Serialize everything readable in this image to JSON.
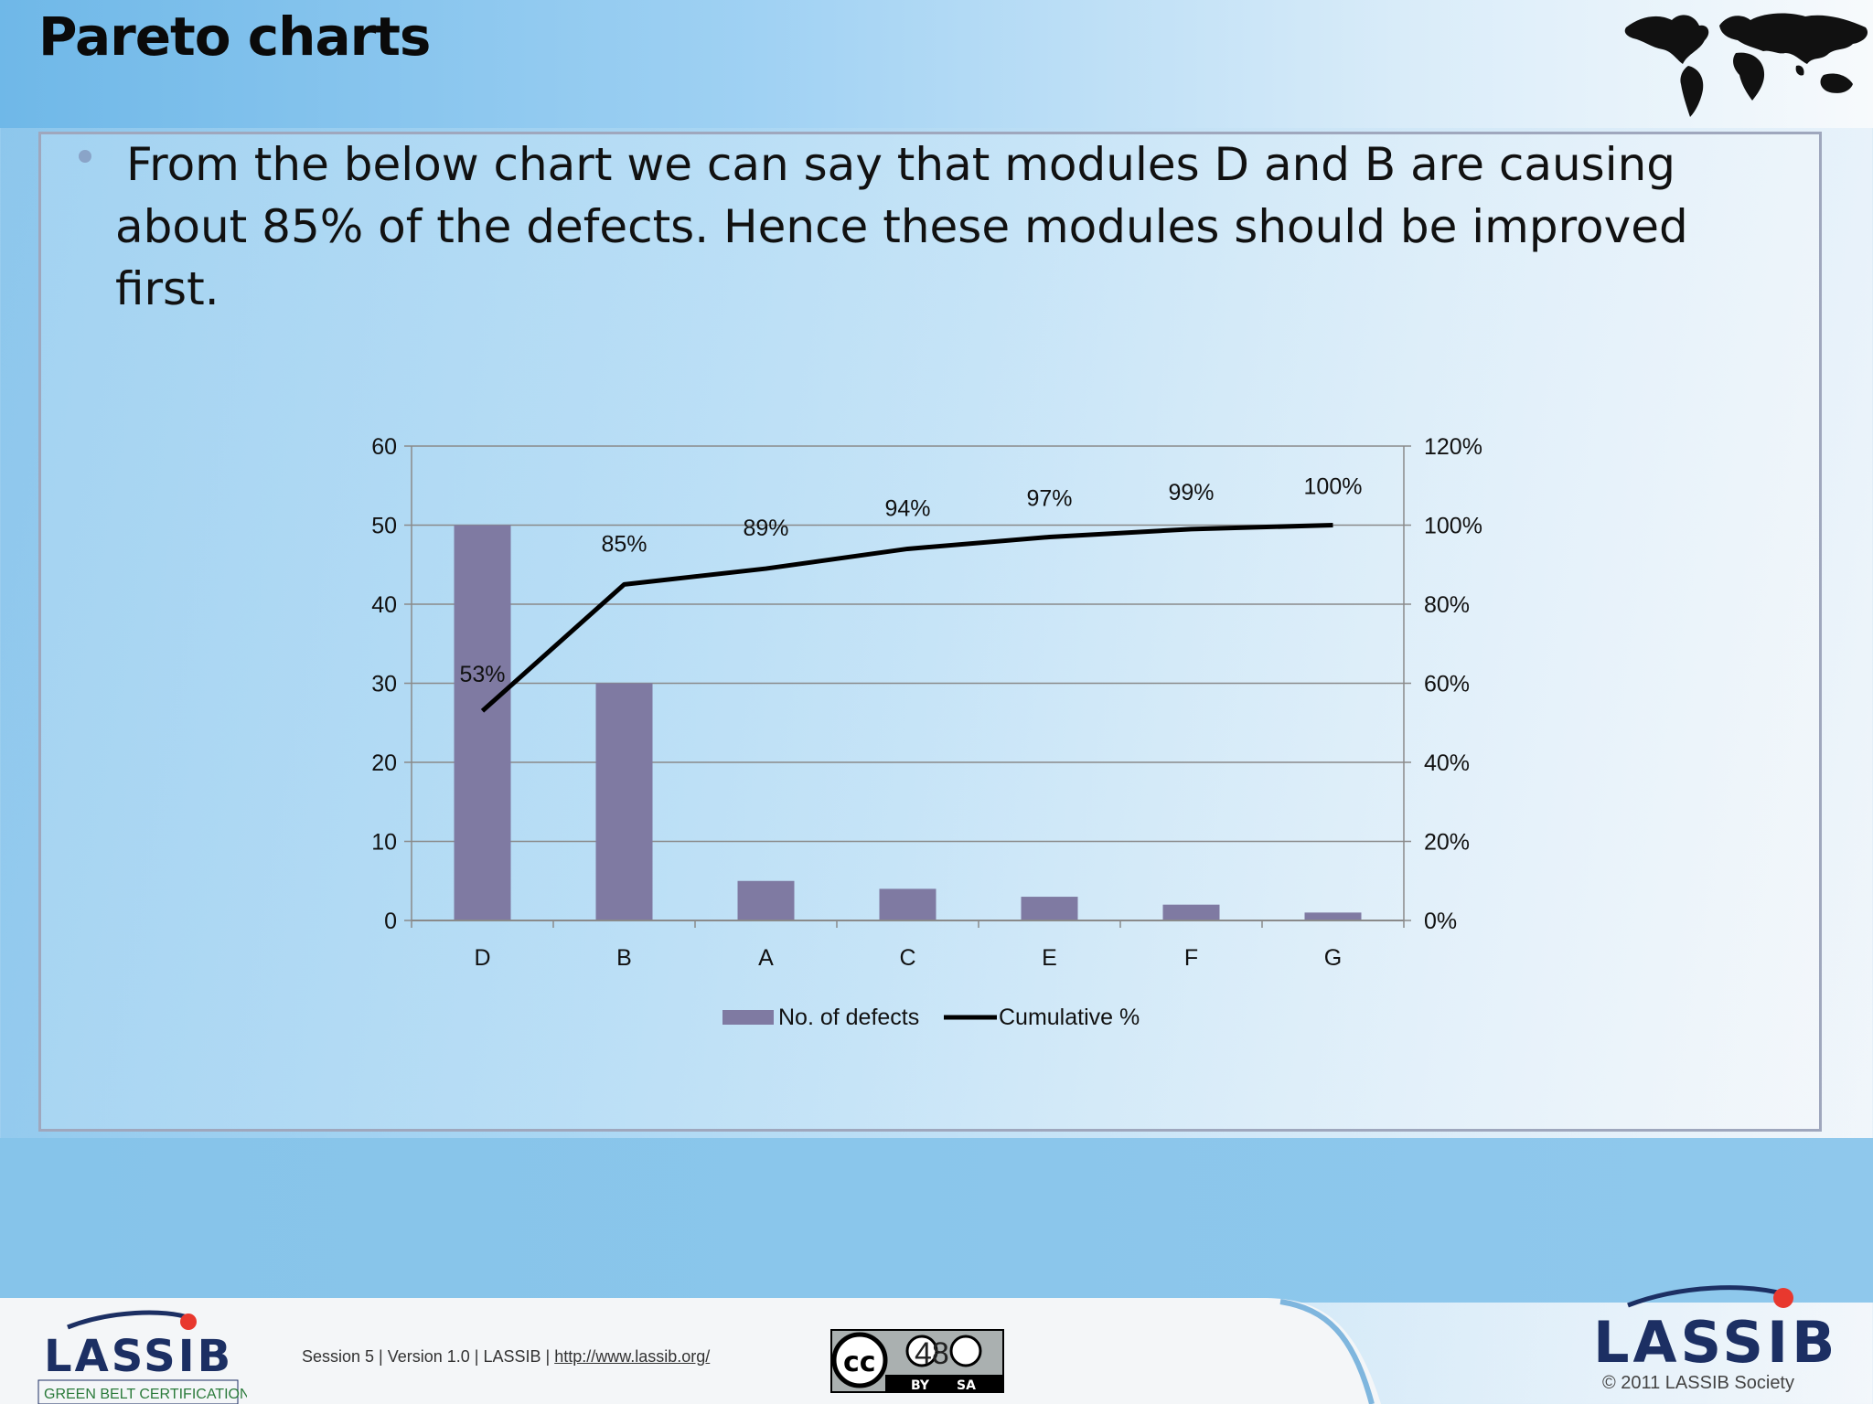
{
  "slide": {
    "title": "Pareto charts",
    "bullet": "From the below chart we can say that modules D and B are causing about 85% of the defects. Hence these modules should be improved first."
  },
  "chart_data": {
    "type": "bar",
    "categories": [
      "D",
      "B",
      "A",
      "C",
      "E",
      "F",
      "G"
    ],
    "series": [
      {
        "name": "No. of defects",
        "type": "bar",
        "axis": "left",
        "color": "#7f7aa2",
        "values": [
          50,
          30,
          5,
          4,
          3,
          2,
          1
        ]
      },
      {
        "name": "Cumulative %",
        "type": "line",
        "axis": "right",
        "color": "#000000",
        "values": [
          53,
          85,
          89,
          94,
          97,
          99,
          100
        ]
      }
    ],
    "data_labels": [
      "53%",
      "85%",
      "89%",
      "94%",
      "97%",
      "99%",
      "100%"
    ],
    "y_left": {
      "min": 0,
      "max": 60,
      "ticks": [
        "0",
        "10",
        "20",
        "30",
        "40",
        "50",
        "60"
      ]
    },
    "y_right": {
      "min": 0,
      "max": 120,
      "ticks": [
        "0%",
        "20%",
        "40%",
        "60%",
        "80%",
        "100%",
        "120%"
      ]
    },
    "grid": true,
    "legend_position": "bottom"
  },
  "footer": {
    "logo_text": "LASSIB",
    "logo_subtitle": "GREEN BELT CERTIFICATION",
    "session_info": "Session 5 | Version 1.0 | LASSIB | ",
    "url": "http://www.lassib.org/",
    "license_left": "BY",
    "license_right": "SA",
    "slide_number": "48",
    "brand": "LASSIB",
    "copyright": "© 2011 LASSIB Society"
  },
  "colors": {
    "bar": "#7f7aa2",
    "line": "#000000",
    "accent_red": "#e8382e",
    "accent_navy": "#1c2f63"
  },
  "icons": {
    "map": "world-map-icon",
    "license": "creative-commons-icon"
  }
}
